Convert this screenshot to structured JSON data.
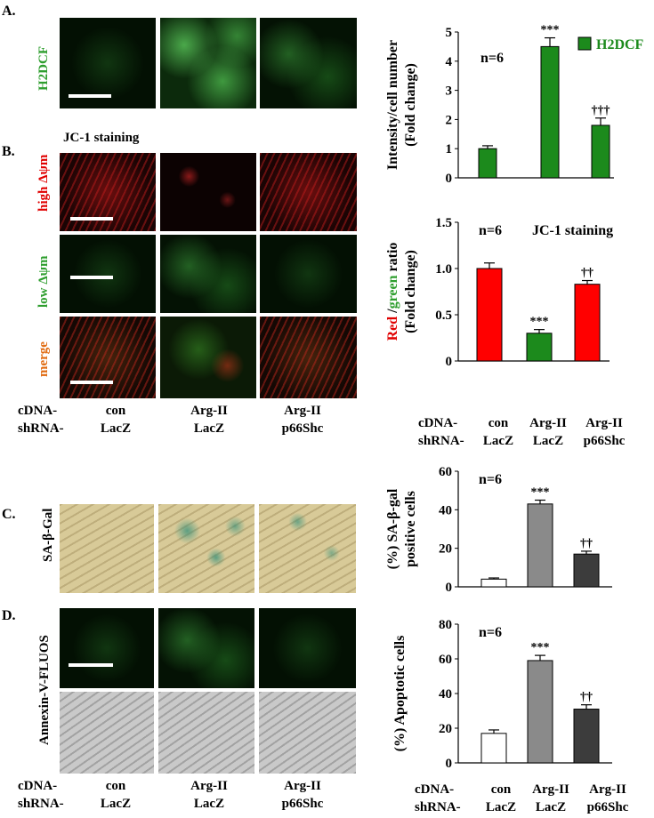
{
  "panels": {
    "A": "A.",
    "B": "B.",
    "C": "C.",
    "D": "D."
  },
  "image_labels": {
    "h2dcf": "H2DCF",
    "jc1_title": "JC-1 staining",
    "high": "high Δψm",
    "low": "low Δψm",
    "merge": "merge",
    "sagal": "SA-β-Gal",
    "annexin": "Annexin-V-FLUOS"
  },
  "row_labels": {
    "cdna": "cDNA-",
    "shrna": "shRNA-"
  },
  "groups": [
    {
      "cdna": "con",
      "shrna": "LacZ"
    },
    {
      "cdna": "Arg-II",
      "shrna": "LacZ"
    },
    {
      "cdna": "Arg-II",
      "shrna": "p66Shc"
    }
  ],
  "colors": {
    "green_bar": "#1c8a1c",
    "red_bar": "#ff0000",
    "white_bar": "#ffffff",
    "gray_bar": "#8a8a8a",
    "dark_bar": "#3c3c3c",
    "label_green": "#2e9e2e",
    "label_red": "#e00000",
    "label_orange": "#e06a10"
  },
  "chart_data": [
    {
      "type": "bar",
      "categories": [
        "con LacZ",
        "Arg-II LacZ",
        "Arg-II p66Shc"
      ],
      "values": [
        1.0,
        4.5,
        1.8
      ],
      "errors": [
        0.1,
        0.3,
        0.25
      ],
      "ylabel_line1": "Intensity/cell number",
      "ylabel_line2": "(Fold change)",
      "ylim": [
        0,
        5
      ],
      "ticks": [
        "0",
        "1",
        "2",
        "3",
        "4",
        "5"
      ],
      "n_label": "n=6",
      "legend": "H2DCF",
      "annotations": [
        "",
        "***",
        "†††"
      ],
      "bar_colors": [
        "#1c8a1c",
        "#1c8a1c",
        "#1c8a1c"
      ]
    },
    {
      "type": "bar",
      "categories": [
        "con LacZ",
        "Arg-II LacZ",
        "Arg-II p66Shc"
      ],
      "values": [
        1.0,
        0.3,
        0.83
      ],
      "errors": [
        0.06,
        0.04,
        0.04
      ],
      "ylabel_red": "Red",
      "ylabel_slash": " /",
      "ylabel_green": "green",
      "ylabel_rest": " ratio",
      "ylabel_line2": "(Fold change)",
      "ylim": [
        0,
        1.5
      ],
      "ticks": [
        "0",
        "0.5",
        "1.0",
        "1.5"
      ],
      "n_label": "n=6",
      "title": "JC-1 staining",
      "annotations": [
        "",
        "***",
        "††"
      ],
      "bar_colors": [
        "#ff0000",
        "#1c8a1c",
        "#ff0000"
      ]
    },
    {
      "type": "bar",
      "categories": [
        "con LacZ",
        "Arg-II LacZ",
        "Arg-II p66Shc"
      ],
      "values": [
        4,
        43,
        17
      ],
      "errors": [
        0.6,
        2,
        1.5
      ],
      "ylabel_line1": "(%) SA-β-gal",
      "ylabel_line2": "positive cells",
      "ylim": [
        0,
        60
      ],
      "ticks": [
        "0",
        "20",
        "40",
        "60"
      ],
      "n_label": "n=6",
      "annotations": [
        "",
        "***",
        "††"
      ],
      "bar_colors": [
        "#ffffff",
        "#8a8a8a",
        "#3c3c3c"
      ]
    },
    {
      "type": "bar",
      "categories": [
        "con LacZ",
        "Arg-II LacZ",
        "Arg-II p66Shc"
      ],
      "values": [
        17,
        59,
        31
      ],
      "errors": [
        2,
        3,
        2.5
      ],
      "ylabel_line1": "(%) Apoptotic cells",
      "ylim": [
        0,
        80
      ],
      "ticks": [
        "0",
        "20",
        "40",
        "60",
        "80"
      ],
      "n_label": "n=6",
      "annotations": [
        "",
        "***",
        "††"
      ],
      "bar_colors": [
        "#ffffff",
        "#8a8a8a",
        "#3c3c3c"
      ]
    }
  ]
}
